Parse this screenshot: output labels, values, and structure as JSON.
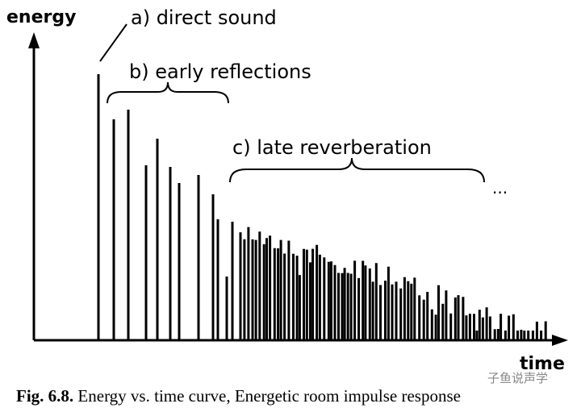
{
  "axes": {
    "y_label": "energy",
    "x_label": "time"
  },
  "annotations": {
    "direct": "a) direct sound",
    "early": "b) early reflections",
    "late": "c) late reverberation",
    "continuation": "..."
  },
  "caption": {
    "label": "Fig. 6.8.",
    "text": "Energy vs. time curve, Energetic room impulse response"
  },
  "watermark": "子鱼说声学"
}
